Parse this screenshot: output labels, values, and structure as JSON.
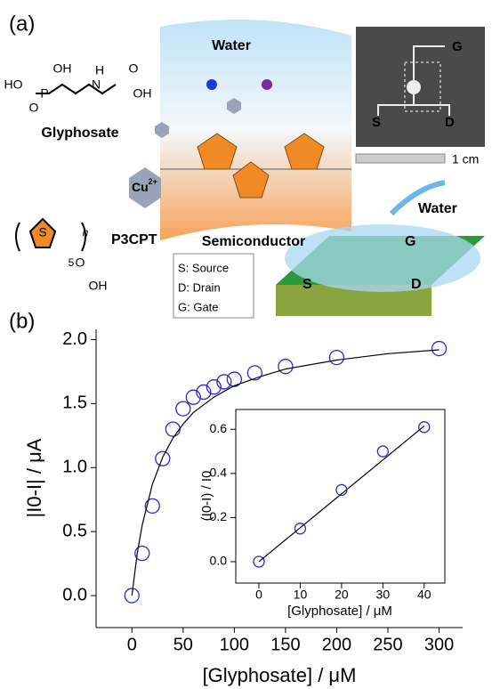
{
  "panel_a": {
    "label": "(a)",
    "water": "Water",
    "semiconductor": "Semiconductor",
    "glyphosate": {
      "name": "Glyphosate",
      "atoms": [
        "OH",
        "HO",
        "P",
        "O",
        "H",
        "N",
        "O",
        "OH"
      ]
    },
    "cu": {
      "base": "Cu",
      "charge": "2+"
    },
    "p3cpt": {
      "name": "P3CPT",
      "atoms": [
        "S",
        "n",
        "5",
        "O",
        "OH"
      ]
    },
    "legend": [
      "S: Source",
      "D: Drain",
      "G: Gate"
    ],
    "photo": {
      "electrodes": [
        "G",
        "S",
        "D"
      ],
      "scale": "1 cm"
    },
    "device": {
      "water": "Water",
      "electrodes": [
        "G",
        "S",
        "D"
      ]
    }
  },
  "panel_b_label": "(b)",
  "chart_data": [
    {
      "type": "scatter",
      "xlabel": "[Glyphosate] / μM",
      "ylabel": "|I0-I| / μA",
      "xlim": [
        -35,
        323
      ],
      "ylim": [
        -0.25,
        2.08
      ],
      "xticks": [
        0,
        50,
        100,
        150,
        200,
        250,
        300
      ],
      "yticks": [
        {
          "value": 0,
          "label": "0.0"
        },
        {
          "value": 0.5,
          "label": "0.5"
        },
        {
          "value": 1,
          "label": "1.0"
        },
        {
          "value": 1.5,
          "label": "1.5"
        },
        {
          "value": 2,
          "label": "2.0"
        }
      ],
      "series": [
        {
          "color": "#2b2bd0",
          "style": "marker",
          "x": [
            0,
            10,
            20,
            30,
            40,
            50,
            60,
            70,
            80,
            90,
            100,
            120,
            150,
            200,
            300
          ],
          "values": [
            0,
            0.33,
            0.7,
            1.07,
            1.3,
            1.46,
            1.55,
            1.59,
            1.63,
            1.67,
            1.69,
            1.74,
            1.79,
            1.86,
            1.93
          ]
        },
        {
          "color": "#000000",
          "style": "line",
          "x": [
            0,
            5,
            10,
            20,
            30,
            40,
            50,
            60,
            80,
            100,
            125,
            150,
            200,
            250,
            300
          ],
          "values": [
            0,
            0.32,
            0.55,
            0.87,
            1.08,
            1.23,
            1.34,
            1.43,
            1.55,
            1.64,
            1.71,
            1.77,
            1.84,
            1.89,
            1.92
          ]
        }
      ]
    },
    {
      "type": "scatter",
      "xlabel": "[Glyphosate] / μM",
      "ylabel": "(I0-I) / I0",
      "xlim": [
        -5.6,
        45
      ],
      "ylim": [
        -0.097,
        0.69
      ],
      "xticks": [
        0,
        10,
        20,
        30,
        40
      ],
      "yticks": [
        {
          "value": 0,
          "label": "0.0"
        },
        {
          "value": 0.2,
          "label": "0.2"
        },
        {
          "value": 0.4,
          "label": "0.4"
        },
        {
          "value": 0.6,
          "label": "0.6"
        }
      ],
      "series": [
        {
          "color": "#2b2bd0",
          "style": "marker",
          "x": [
            0,
            10,
            20,
            30,
            40
          ],
          "values": [
            0,
            0.15,
            0.325,
            0.5,
            0.61
          ]
        },
        {
          "color": "#000000",
          "style": "line",
          "x": [
            0,
            40
          ],
          "values": [
            0,
            0.615
          ]
        }
      ]
    }
  ]
}
